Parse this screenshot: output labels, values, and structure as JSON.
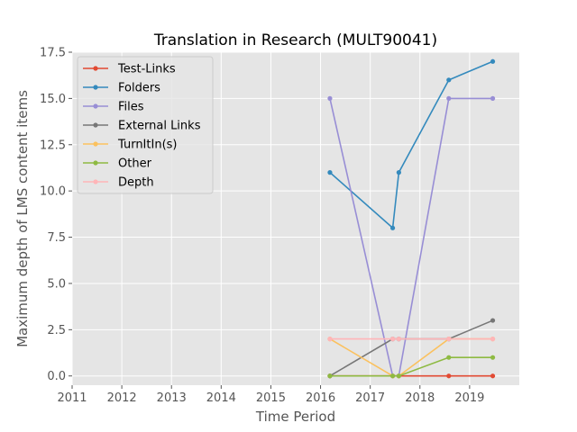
{
  "chart_data": {
    "type": "line",
    "title": "Translation in Research (MULT90041)",
    "xlabel": "Time Period",
    "ylabel": "Maximum depth of LMS content items",
    "xlim": [
      2011,
      2020
    ],
    "ylim": [
      -0.5,
      17.5
    ],
    "xticks": [
      "2011",
      "2012",
      "2013",
      "2014",
      "2015",
      "2016",
      "2017",
      "2018",
      "2019"
    ],
    "yticks": [
      "0.0",
      "2.5",
      "5.0",
      "7.5",
      "10.0",
      "12.5",
      "15.0",
      "17.5"
    ],
    "grid": true,
    "legend_position": "upper-left",
    "series": [
      {
        "name": "Test-Links",
        "color": "#E24A33",
        "x": [
          "2016-03-10",
          "2017-06-15",
          "2017-07-30",
          "2018-08-01",
          "2019-06-20"
        ],
        "y": [
          0,
          0,
          0,
          0,
          0
        ]
      },
      {
        "name": "Folders",
        "color": "#348ABD",
        "x": [
          "2016-03-10",
          "2017-06-15",
          "2017-07-30",
          "2018-08-01",
          "2019-06-20"
        ],
        "y": [
          11,
          8,
          11,
          16,
          17
        ]
      },
      {
        "name": "Files",
        "color": "#988ED5",
        "x": [
          "2016-03-10",
          "2017-06-15",
          "2017-07-30",
          "2018-08-01",
          "2019-06-20"
        ],
        "y": [
          15,
          0,
          0,
          15,
          15
        ]
      },
      {
        "name": "External Links",
        "color": "#777777",
        "x": [
          "2016-03-10",
          "2017-06-15",
          "2017-07-30",
          "2018-08-01",
          "2019-06-20"
        ],
        "y": [
          0,
          2,
          2,
          2,
          3
        ]
      },
      {
        "name": "TurnItIn(s)",
        "color": "#FBC15E",
        "x": [
          "2016-03-10",
          "2017-06-15",
          "2017-07-30",
          "2018-08-01",
          "2019-06-20"
        ],
        "y": [
          2,
          0,
          0,
          2,
          2
        ]
      },
      {
        "name": "Other",
        "color": "#8EBA42",
        "x": [
          "2016-03-10",
          "2017-06-15",
          "2017-07-30",
          "2018-08-01",
          "2019-06-20"
        ],
        "y": [
          0,
          0,
          0,
          1,
          1
        ]
      },
      {
        "name": "Depth",
        "color": "#FFB5B8",
        "x": [
          "2016-03-10",
          "2017-06-15",
          "2017-07-30",
          "2018-08-01",
          "2019-06-20"
        ],
        "y": [
          2,
          2,
          2,
          2,
          2
        ]
      }
    ]
  }
}
